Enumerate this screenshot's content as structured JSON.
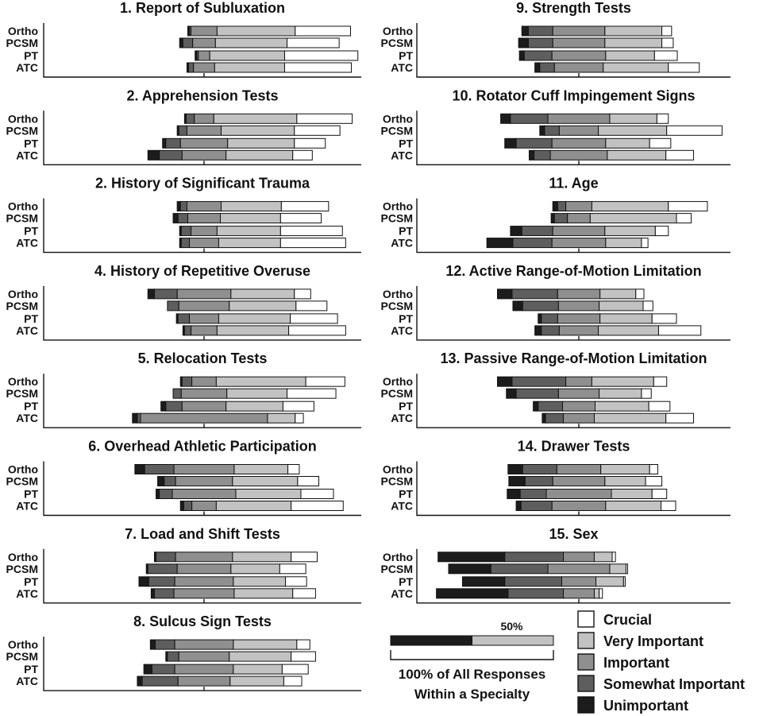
{
  "chart_data": {
    "type": "bar",
    "subtype": "diverging-stacked-horizontal",
    "row_labels": [
      "Ortho",
      "PCSM",
      "PT",
      "ATC"
    ],
    "categories": [
      "Unimportant",
      "Somewhat Important",
      "Important",
      "Very Important",
      "Crucial"
    ],
    "colors": {
      "Unimportant": "#1c1c1c",
      "Somewhat Important": "#5e5e5e",
      "Important": "#8f8f8f",
      "Very Important": "#c2c2c2",
      "Crucial": "#ffffff"
    },
    "units": "percent of responses within a specialty",
    "panels": [
      {
        "title": "1. Report of Subluxation",
        "groups": [
          [
            1,
            1,
            16,
            48,
            34
          ],
          [
            2,
            6,
            14,
            44,
            32
          ],
          [
            1,
            1,
            7,
            46,
            45
          ],
          [
            1,
            3,
            13,
            43,
            41
          ]
        ]
      },
      {
        "title": "2. Apprehension Tests",
        "groups": [
          [
            1,
            5,
            12,
            51,
            34
          ],
          [
            1,
            5,
            21,
            45,
            28
          ],
          [
            2,
            9,
            29,
            41,
            19
          ],
          [
            7,
            14,
            27,
            41,
            12
          ]
        ]
      },
      {
        "title": "2. History of Significant Trauma",
        "groups": [
          [
            2,
            4,
            21,
            37,
            29
          ],
          [
            3,
            6,
            20,
            37,
            25
          ],
          [
            1,
            6,
            16,
            39,
            38
          ],
          [
            1,
            5,
            18,
            38,
            40
          ]
        ]
      },
      {
        "title": "4. History of Repetitive Overuse",
        "groups": [
          [
            4,
            14,
            33,
            39,
            10
          ],
          [
            0,
            7,
            31,
            41,
            19
          ],
          [
            1,
            7,
            18,
            44,
            29
          ],
          [
            1,
            4,
            16,
            44,
            35
          ]
        ]
      },
      {
        "title": "5. Relocation Tests",
        "groups": [
          [
            1,
            6,
            15,
            55,
            24
          ],
          [
            0,
            5,
            28,
            37,
            30
          ],
          [
            3,
            10,
            27,
            35,
            19
          ],
          [
            3,
            2,
            78,
            17,
            5
          ]
        ]
      },
      {
        "title": "6. Overhead Athletic Participation",
        "groups": [
          [
            6,
            18,
            37,
            33,
            7
          ],
          [
            4,
            7,
            35,
            40,
            13
          ],
          [
            2,
            8,
            39,
            40,
            20
          ],
          [
            2,
            5,
            15,
            46,
            32
          ]
        ]
      },
      {
        "title": "7. Load and Shift Tests",
        "groups": [
          [
            1,
            12,
            35,
            36,
            16
          ],
          [
            1,
            18,
            33,
            30,
            16
          ],
          [
            6,
            16,
            36,
            32,
            13
          ],
          [
            2,
            12,
            37,
            36,
            14
          ]
        ]
      },
      {
        "title": "8. Sulcus Sign Tests",
        "groups": [
          [
            3,
            12,
            36,
            39,
            8
          ],
          [
            1,
            7,
            31,
            38,
            15
          ],
          [
            5,
            14,
            36,
            30,
            16
          ],
          [
            3,
            22,
            32,
            33,
            11
          ]
        ]
      },
      {
        "title": "9. Strength Tests",
        "groups": [
          [
            4,
            15,
            32,
            35,
            6
          ],
          [
            6,
            15,
            32,
            35,
            7
          ],
          [
            3,
            17,
            33,
            30,
            14
          ],
          [
            3,
            9,
            30,
            40,
            19
          ]
        ]
      },
      {
        "title": "10. Rotator Cuff Impingement Signs",
        "groups": [
          [
            6,
            23,
            38,
            29,
            7
          ],
          [
            3,
            9,
            24,
            42,
            34
          ],
          [
            7,
            22,
            33,
            27,
            13
          ],
          [
            3,
            10,
            35,
            36,
            17
          ]
        ]
      },
      {
        "title": "11. Age",
        "groups": [
          [
            3,
            5,
            16,
            47,
            24
          ],
          [
            2,
            8,
            14,
            53,
            9
          ],
          [
            7,
            19,
            32,
            31,
            8
          ],
          [
            16,
            24,
            33,
            22,
            4
          ]
        ]
      },
      {
        "title": "12. Active Range-of-Motion Limitation",
        "groups": [
          [
            9,
            28,
            26,
            22,
            5
          ],
          [
            6,
            22,
            25,
            27,
            6
          ],
          [
            2,
            10,
            26,
            32,
            15
          ],
          [
            4,
            11,
            24,
            37,
            26
          ]
        ]
      },
      {
        "title": "13. Passive Range-of-Motion Limitation",
        "groups": [
          [
            9,
            33,
            16,
            38,
            8
          ],
          [
            6,
            26,
            25,
            26,
            6
          ],
          [
            3,
            15,
            20,
            33,
            13
          ],
          [
            2,
            11,
            19,
            44,
            17
          ]
        ]
      },
      {
        "title": "14. Drawer Tests",
        "groups": [
          [
            9,
            21,
            27,
            30,
            5
          ],
          [
            10,
            17,
            32,
            25,
            10
          ],
          [
            8,
            16,
            40,
            25,
            9
          ],
          [
            3,
            19,
            33,
            34,
            9
          ]
        ]
      },
      {
        "title": "15. Sex",
        "groups": [
          [
            41,
            36,
            19,
            11,
            2
          ],
          [
            26,
            35,
            38,
            10,
            1
          ],
          [
            26,
            35,
            21,
            17,
            1
          ],
          [
            44,
            34,
            19,
            3,
            2
          ]
        ]
      }
    ]
  },
  "legend": {
    "items": [
      "Crucial",
      "Very Important",
      "Important",
      "Somewhat Important",
      "Unimportant"
    ],
    "scale_key": {
      "label": "100% of All Responses Within a Specialty",
      "line1": "100% of All Responses",
      "line2": "Within a Specialty",
      "midpoint_label": "50%"
    }
  }
}
